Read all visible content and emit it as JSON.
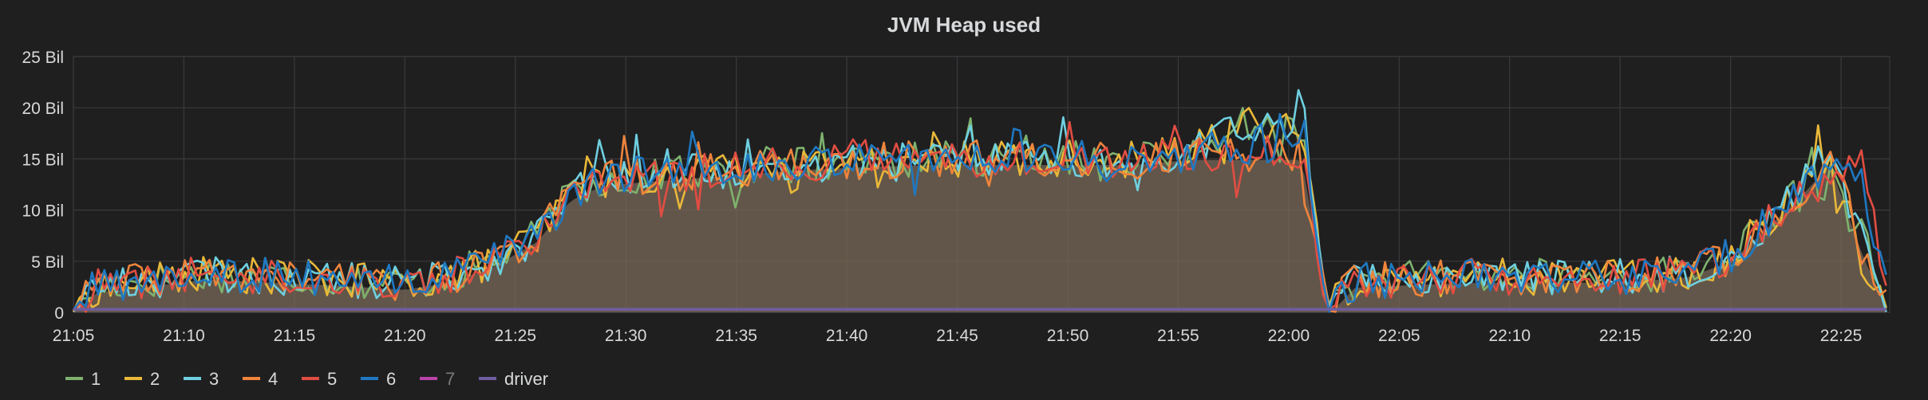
{
  "chart_data": {
    "type": "line",
    "title": "JVM Heap used",
    "xlabel": "",
    "ylabel": "",
    "y_ticks": [
      "0",
      "5 Bil",
      "10 Bil",
      "15 Bil",
      "20 Bil",
      "25 Bil"
    ],
    "y_tick_values": [
      0,
      5,
      10,
      15,
      20,
      25
    ],
    "ylim": [
      0,
      25
    ],
    "y_unit": "Bil",
    "x_ticks": [
      "21:05",
      "21:10",
      "21:15",
      "21:20",
      "21:25",
      "21:30",
      "21:35",
      "21:40",
      "21:45",
      "21:50",
      "21:55",
      "22:00",
      "22:05",
      "22:10",
      "22:15",
      "22:20",
      "22:25"
    ],
    "x_tick_minutes": [
      0,
      5,
      10,
      15,
      20,
      25,
      30,
      35,
      40,
      45,
      50,
      55,
      60,
      65,
      70,
      75,
      80
    ],
    "xlim_minutes": [
      0,
      82.2
    ],
    "grid": true,
    "legend_position": "bottom-left",
    "series": [
      {
        "name": "1",
        "color": "#7eb26d",
        "points": [
          [
            0,
            0.3
          ],
          [
            1,
            2.5
          ],
          [
            3,
            3.0
          ],
          [
            6,
            3.8
          ],
          [
            9,
            3.5
          ],
          [
            12,
            3.2
          ],
          [
            15,
            2.8
          ],
          [
            17,
            3.5
          ],
          [
            19,
            5.0
          ],
          [
            21,
            7.5
          ],
          [
            22.5,
            11.5
          ],
          [
            24,
            13.0
          ],
          [
            27,
            13.5
          ],
          [
            30,
            14.0
          ],
          [
            33,
            14.5
          ],
          [
            36,
            14.8
          ],
          [
            39,
            15.0
          ],
          [
            42,
            15.0
          ],
          [
            45,
            15.0
          ],
          [
            48,
            15.0
          ],
          [
            50.5,
            15.5
          ],
          [
            52,
            17.5
          ],
          [
            55.2,
            17.5
          ],
          [
            55.6,
            17.5
          ],
          [
            56.8,
            0.3
          ],
          [
            58,
            3.0
          ],
          [
            61,
            3.3
          ],
          [
            64,
            3.5
          ],
          [
            67,
            3.5
          ],
          [
            70,
            3.5
          ],
          [
            73,
            4.0
          ],
          [
            75,
            5.5
          ],
          [
            76.5,
            8.5
          ],
          [
            78,
            11.5
          ],
          [
            79.5,
            13.0
          ],
          [
            81,
            7.0
          ],
          [
            82.2,
            0.5
          ]
        ],
        "amp": 1.8
      },
      {
        "name": "2",
        "color": "#eab839",
        "points": [
          [
            0,
            0.3
          ],
          [
            1,
            2.5
          ],
          [
            3,
            3.0
          ],
          [
            6,
            3.8
          ],
          [
            9,
            3.5
          ],
          [
            12,
            3.2
          ],
          [
            15,
            2.8
          ],
          [
            17,
            3.5
          ],
          [
            19,
            5.0
          ],
          [
            21,
            7.5
          ],
          [
            22.5,
            11.5
          ],
          [
            24,
            13.0
          ],
          [
            27,
            13.5
          ],
          [
            30,
            14.0
          ],
          [
            33,
            14.5
          ],
          [
            36,
            14.8
          ],
          [
            39,
            15.0
          ],
          [
            42,
            15.0
          ],
          [
            45,
            15.0
          ],
          [
            48,
            15.0
          ],
          [
            50.5,
            15.5
          ],
          [
            52,
            18.3
          ],
          [
            55.2,
            18.3
          ],
          [
            55.6,
            18.3
          ],
          [
            56.8,
            0.3
          ],
          [
            58,
            3.0
          ],
          [
            61,
            3.3
          ],
          [
            64,
            3.5
          ],
          [
            67,
            3.5
          ],
          [
            70,
            3.5
          ],
          [
            73,
            4.0
          ],
          [
            75,
            5.5
          ],
          [
            76.5,
            8.5
          ],
          [
            78,
            12.0
          ],
          [
            79.5,
            15.5
          ],
          [
            81,
            5.0
          ],
          [
            82.2,
            0.5
          ]
        ],
        "amp": 1.8
      },
      {
        "name": "3",
        "color": "#6ed0e0",
        "points": [
          [
            0,
            0.3
          ],
          [
            1,
            2.5
          ],
          [
            3,
            3.0
          ],
          [
            6,
            3.8
          ],
          [
            9,
            3.5
          ],
          [
            12,
            3.2
          ],
          [
            15,
            2.8
          ],
          [
            17,
            3.5
          ],
          [
            19,
            5.0
          ],
          [
            21,
            7.5
          ],
          [
            22.5,
            11.5
          ],
          [
            24,
            13.0
          ],
          [
            27,
            13.5
          ],
          [
            30,
            14.0
          ],
          [
            33,
            14.5
          ],
          [
            36,
            14.8
          ],
          [
            39,
            15.0
          ],
          [
            42,
            15.0
          ],
          [
            45,
            15.0
          ],
          [
            48,
            15.0
          ],
          [
            50.5,
            15.5
          ],
          [
            52,
            17.8
          ],
          [
            55.2,
            17.8
          ],
          [
            55.6,
            17.8
          ],
          [
            56.8,
            0.3
          ],
          [
            58,
            3.0
          ],
          [
            61,
            3.3
          ],
          [
            64,
            3.5
          ],
          [
            67,
            3.5
          ],
          [
            70,
            3.5
          ],
          [
            73,
            4.0
          ],
          [
            75,
            5.5
          ],
          [
            76.5,
            8.5
          ],
          [
            78,
            12.5
          ],
          [
            79.5,
            14.0
          ],
          [
            81,
            8.0
          ],
          [
            82.2,
            0.5
          ]
        ],
        "amp": 1.8
      },
      {
        "name": "4",
        "color": "#ef843c",
        "points": [
          [
            0,
            0.3
          ],
          [
            1,
            2.5
          ],
          [
            3,
            3.0
          ],
          [
            6,
            3.8
          ],
          [
            9,
            3.5
          ],
          [
            12,
            3.2
          ],
          [
            15,
            2.8
          ],
          [
            17,
            3.5
          ],
          [
            19,
            5.0
          ],
          [
            21,
            7.5
          ],
          [
            22.5,
            11.5
          ],
          [
            24,
            13.0
          ],
          [
            27,
            13.5
          ],
          [
            30,
            14.0
          ],
          [
            33,
            14.5
          ],
          [
            36,
            14.8
          ],
          [
            39,
            15.0
          ],
          [
            42,
            15.0
          ],
          [
            45,
            15.0
          ],
          [
            48,
            15.0
          ],
          [
            50.5,
            15.5
          ],
          [
            52,
            15.5
          ],
          [
            55.2,
            15.5
          ],
          [
            55.6,
            15.5
          ],
          [
            56.8,
            0.3
          ],
          [
            58,
            3.0
          ],
          [
            61,
            3.3
          ],
          [
            64,
            3.5
          ],
          [
            67,
            3.5
          ],
          [
            70,
            3.5
          ],
          [
            73,
            4.0
          ],
          [
            75,
            5.5
          ],
          [
            76.5,
            8.5
          ],
          [
            78,
            11.5
          ],
          [
            79.5,
            15.0
          ],
          [
            81,
            6.0
          ],
          [
            82.2,
            0.5
          ]
        ],
        "amp": 1.8
      },
      {
        "name": "5",
        "color": "#e24d42",
        "points": [
          [
            0,
            0.3
          ],
          [
            1,
            2.5
          ],
          [
            3,
            3.0
          ],
          [
            6,
            3.8
          ],
          [
            9,
            3.5
          ],
          [
            12,
            3.2
          ],
          [
            15,
            2.8
          ],
          [
            17,
            3.5
          ],
          [
            19,
            5.0
          ],
          [
            21,
            7.5
          ],
          [
            22.5,
            11.5
          ],
          [
            24,
            13.0
          ],
          [
            27,
            13.5
          ],
          [
            30,
            14.0
          ],
          [
            33,
            14.5
          ],
          [
            36,
            14.8
          ],
          [
            39,
            15.0
          ],
          [
            42,
            15.0
          ],
          [
            45,
            15.0
          ],
          [
            48,
            15.0
          ],
          [
            50.5,
            15.5
          ],
          [
            52,
            15.5
          ],
          [
            55.2,
            15.5
          ],
          [
            55.6,
            15.5
          ],
          [
            56.8,
            0.3
          ],
          [
            58,
            3.0
          ],
          [
            61,
            3.3
          ],
          [
            64,
            3.5
          ],
          [
            67,
            3.5
          ],
          [
            70,
            3.5
          ],
          [
            73,
            4.0
          ],
          [
            75,
            5.5
          ],
          [
            76.5,
            8.5
          ],
          [
            78,
            11.0
          ],
          [
            79.5,
            12.5
          ],
          [
            81,
            14.5
          ],
          [
            82.2,
            0.5
          ]
        ],
        "amp": 1.8
      },
      {
        "name": "6",
        "color": "#1f78c1",
        "points": [
          [
            0,
            0.3
          ],
          [
            1,
            2.5
          ],
          [
            3,
            3.0
          ],
          [
            6,
            3.8
          ],
          [
            9,
            3.5
          ],
          [
            12,
            3.2
          ],
          [
            15,
            2.8
          ],
          [
            17,
            3.5
          ],
          [
            19,
            5.0
          ],
          [
            21,
            7.5
          ],
          [
            22.5,
            11.5
          ],
          [
            24,
            13.0
          ],
          [
            27,
            13.5
          ],
          [
            30,
            14.0
          ],
          [
            33,
            14.5
          ],
          [
            36,
            14.8
          ],
          [
            39,
            15.0
          ],
          [
            42,
            15.0
          ],
          [
            45,
            15.0
          ],
          [
            48,
            15.0
          ],
          [
            50.5,
            15.5
          ],
          [
            52,
            16.0
          ],
          [
            55.2,
            16.0
          ],
          [
            55.6,
            19.0
          ],
          [
            56.8,
            0.3
          ],
          [
            58,
            3.0
          ],
          [
            61,
            3.3
          ],
          [
            64,
            3.5
          ],
          [
            67,
            3.5
          ],
          [
            70,
            3.5
          ],
          [
            73,
            4.0
          ],
          [
            75,
            5.5
          ],
          [
            76.5,
            8.5
          ],
          [
            78,
            12.0
          ],
          [
            79.5,
            13.5
          ],
          [
            81,
            13.0
          ],
          [
            82.2,
            0.5
          ]
        ],
        "amp": 1.8
      },
      {
        "name": "7",
        "color": "#ba43a9",
        "hidden": true,
        "points": []
      },
      {
        "name": "driver",
        "color": "#705da0",
        "points": [
          [
            0,
            0.3
          ],
          [
            82.2,
            0.3
          ]
        ],
        "amp": 0
      }
    ],
    "fill_color": "#7a6a58"
  },
  "legend": [
    {
      "label": "1",
      "color": "#7eb26d",
      "dim": false
    },
    {
      "label": "2",
      "color": "#eab839",
      "dim": false
    },
    {
      "label": "3",
      "color": "#6ed0e0",
      "dim": false
    },
    {
      "label": "4",
      "color": "#ef843c",
      "dim": false
    },
    {
      "label": "5",
      "color": "#e24d42",
      "dim": false
    },
    {
      "label": "6",
      "color": "#1f78c1",
      "dim": false
    },
    {
      "label": "7",
      "color": "#ba43a9",
      "dim": true
    },
    {
      "label": "driver",
      "color": "#705da0",
      "dim": false
    }
  ],
  "colors": {
    "background": "#1f1f20",
    "grid": "#3a3a3c",
    "text": "#d8d9da",
    "dim_text": "#7b7b7b",
    "title": "#d8d9da"
  }
}
